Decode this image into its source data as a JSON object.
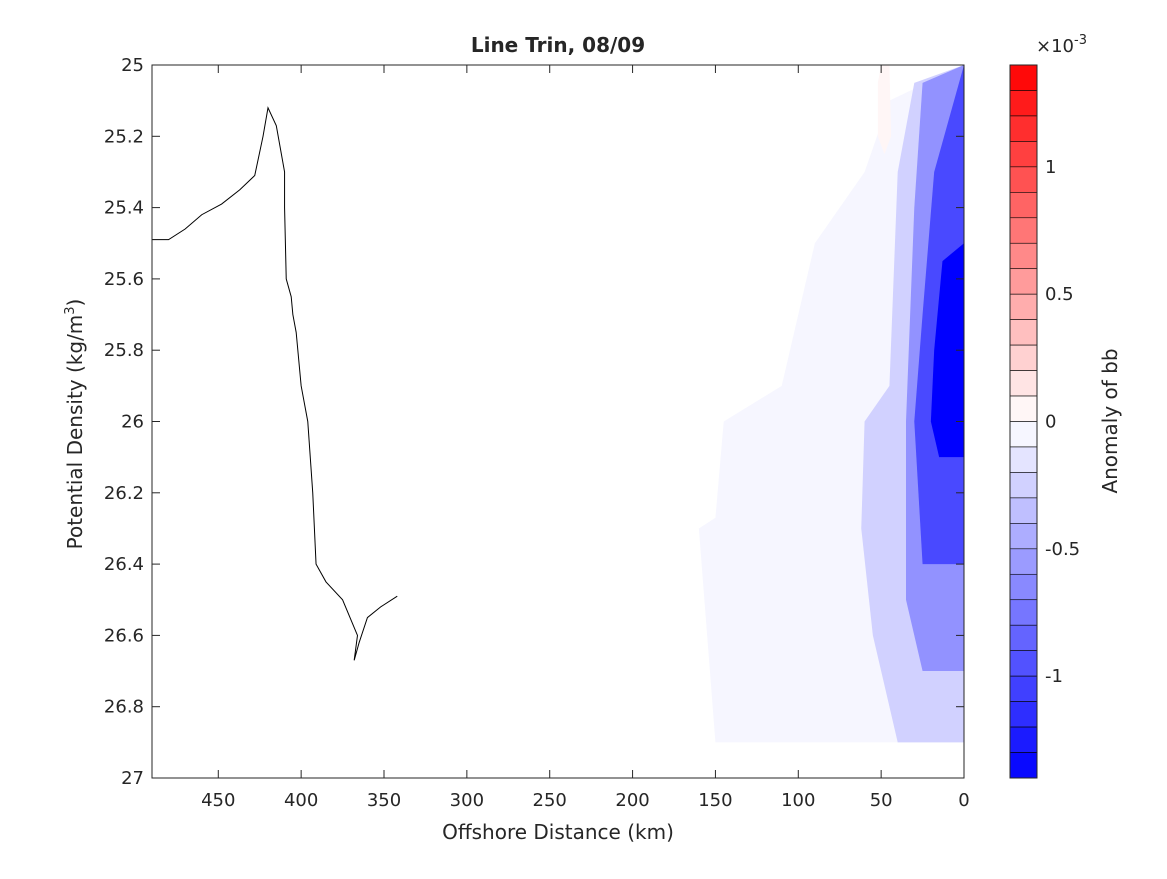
{
  "chart_data": {
    "type": "contour",
    "title": "Line Trin, 08/09",
    "xlabel": "Offshore Distance (km)",
    "ylabel_main": "Potential Density (kg/m",
    "ylabel_sup": "3",
    "ylabel_end": ")",
    "xlim": [
      490,
      0
    ],
    "ylim": [
      25,
      27
    ],
    "x_reversed": true,
    "y_reversed": true,
    "x_ticks": [
      450,
      400,
      350,
      300,
      250,
      200,
      150,
      100,
      50,
      0
    ],
    "y_ticks": [
      25,
      25.2,
      25.4,
      25.6,
      25.8,
      26,
      26.2,
      26.4,
      26.6,
      26.8,
      27
    ],
    "colorbar": {
      "label": "Anomaly of bb",
      "exponent_base": "×10",
      "exponent_power": "-3",
      "range": [
        -1.4,
        1.4
      ],
      "ticks": [
        -1,
        -0.5,
        0,
        0.5,
        1
      ],
      "levels": 28,
      "low_color": "#0000ff",
      "mid_color": "#ffffff",
      "high_color": "#ff0000"
    },
    "zero_contours": [
      [
        [
          490,
          25.49
        ],
        [
          480,
          25.49
        ],
        [
          470,
          25.46
        ],
        [
          460,
          25.42
        ],
        [
          448,
          25.39
        ],
        [
          437,
          25.35
        ],
        [
          428,
          25.31
        ],
        [
          423,
          25.2
        ],
        [
          420,
          25.12
        ],
        [
          415,
          25.17
        ],
        [
          410,
          25.3
        ],
        [
          410,
          25.4
        ],
        [
          409,
          25.6
        ],
        [
          406,
          25.65
        ],
        [
          405,
          25.7
        ],
        [
          403,
          25.75
        ],
        [
          400,
          25.9
        ],
        [
          396,
          26
        ],
        [
          393,
          26.2
        ],
        [
          391,
          26.4
        ],
        [
          385,
          26.45
        ],
        [
          375,
          26.5
        ],
        [
          366,
          26.6
        ],
        [
          368,
          26.67
        ],
        [
          365,
          26.62
        ],
        [
          360,
          26.55
        ],
        [
          352,
          26.52
        ],
        [
          342,
          26.49
        ]
      ]
    ],
    "negative_fill_regions": [
      {
        "level": -0.05,
        "polygon": [
          [
            0,
            25
          ],
          [
            45,
            25.1
          ],
          [
            60,
            25.3
          ],
          [
            90,
            25.5
          ],
          [
            110,
            25.9
          ],
          [
            145,
            26.0
          ],
          [
            150,
            26.27
          ],
          [
            160,
            26.3
          ],
          [
            155,
            26.6
          ],
          [
            150,
            26.9
          ],
          [
            0,
            26.9
          ]
        ]
      },
      {
        "level": -0.25,
        "polygon": [
          [
            0,
            25
          ],
          [
            30,
            25.05
          ],
          [
            40,
            25.3
          ],
          [
            45,
            25.9
          ],
          [
            60,
            26.0
          ],
          [
            62,
            26.3
          ],
          [
            55,
            26.6
          ],
          [
            40,
            26.9
          ],
          [
            0,
            26.9
          ]
        ]
      },
      {
        "level": -0.6,
        "polygon": [
          [
            0,
            25
          ],
          [
            25,
            25.05
          ],
          [
            30,
            25.4
          ],
          [
            35,
            26.0
          ],
          [
            35,
            26.5
          ],
          [
            25,
            26.7
          ],
          [
            0,
            26.7
          ]
        ]
      },
      {
        "level": -1.0,
        "polygon": [
          [
            0,
            25
          ],
          [
            18,
            25.3
          ],
          [
            25,
            25.7
          ],
          [
            30,
            26.0
          ],
          [
            25,
            26.4
          ],
          [
            0,
            26.4
          ]
        ]
      },
      {
        "level": -1.4,
        "polygon": [
          [
            0,
            25.5
          ],
          [
            13,
            25.55
          ],
          [
            18,
            25.8
          ],
          [
            20,
            26.0
          ],
          [
            15,
            26.1
          ],
          [
            0,
            26.1
          ]
        ]
      }
    ],
    "positive_fill_regions": [
      {
        "level": 0.05,
        "polygon": [
          [
            50,
            25.0
          ],
          [
            45,
            25.0
          ],
          [
            44,
            25.2
          ],
          [
            48,
            25.25
          ],
          [
            52,
            25.2
          ],
          [
            52,
            25.05
          ]
        ]
      }
    ]
  }
}
